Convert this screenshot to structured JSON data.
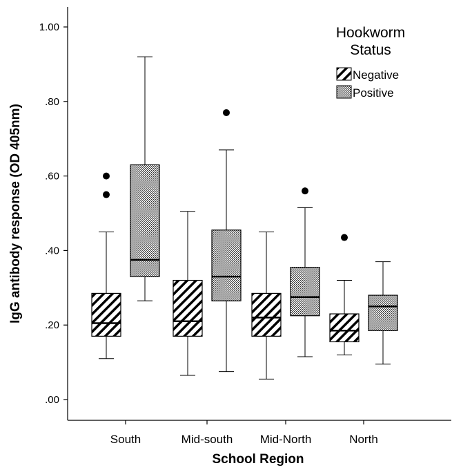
{
  "chart_data": {
    "type": "boxplot",
    "xlabel": "School Region",
    "ylabel": "IgG antibody response (OD 405nm)",
    "ylim": [
      0,
      1.0
    ],
    "yticks": [
      {
        "value": 0.0,
        "label": ".00"
      },
      {
        "value": 0.2,
        "label": ".20"
      },
      {
        "value": 0.4,
        "label": ".40"
      },
      {
        "value": 0.6,
        "label": ".60"
      },
      {
        "value": 0.8,
        "label": ".80"
      },
      {
        "value": 1.0,
        "label": "1.00"
      }
    ],
    "categories": [
      "South",
      "Mid-south",
      "Mid-North",
      "North"
    ],
    "legend": {
      "title_lines": [
        "Hookworm",
        "Status"
      ],
      "placement": "top-right"
    },
    "colors": {
      "stroke": "#000000",
      "dots": "#000000",
      "background": "#ffffff"
    },
    "series": [
      {
        "name": "Negative",
        "pattern": "diagonal-stripes",
        "boxes": [
          {
            "whisker_low": 0.11,
            "q1": 0.17,
            "median": 0.205,
            "q3": 0.285,
            "whisker_high": 0.45,
            "outliers": [
              0.55,
              0.6
            ]
          },
          {
            "whisker_low": 0.065,
            "q1": 0.17,
            "median": 0.21,
            "q3": 0.32,
            "whisker_high": 0.505,
            "outliers": []
          },
          {
            "whisker_low": 0.055,
            "q1": 0.17,
            "median": 0.22,
            "q3": 0.285,
            "whisker_high": 0.45,
            "outliers": []
          },
          {
            "whisker_low": 0.12,
            "q1": 0.155,
            "median": 0.185,
            "q3": 0.23,
            "whisker_high": 0.32,
            "outliers": [
              0.435
            ]
          }
        ]
      },
      {
        "name": "Positive",
        "pattern": "dotted",
        "boxes": [
          {
            "whisker_low": 0.265,
            "q1": 0.33,
            "median": 0.375,
            "q3": 0.63,
            "whisker_high": 0.92,
            "outliers": []
          },
          {
            "whisker_low": 0.075,
            "q1": 0.265,
            "median": 0.33,
            "q3": 0.455,
            "whisker_high": 0.67,
            "outliers": [
              0.77
            ]
          },
          {
            "whisker_low": 0.115,
            "q1": 0.225,
            "median": 0.275,
            "q3": 0.355,
            "whisker_high": 0.515,
            "outliers": [
              0.56
            ]
          },
          {
            "whisker_low": 0.095,
            "q1": 0.185,
            "median": 0.25,
            "q3": 0.28,
            "whisker_high": 0.37,
            "outliers": []
          }
        ]
      }
    ]
  }
}
